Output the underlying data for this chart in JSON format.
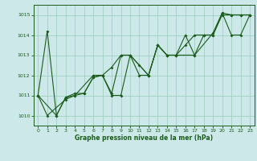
{
  "xlabel": "Graphe pression niveau de la mer (hPa)",
  "background_color": "#cce8e8",
  "grid_color": "#99ccbb",
  "line_color": "#1a5c1a",
  "xlim": [
    -0.5,
    23.5
  ],
  "ylim": [
    1009.5,
    1015.5
  ],
  "yticks": [
    1010,
    1011,
    1012,
    1013,
    1014,
    1015
  ],
  "xticks": [
    0,
    1,
    2,
    3,
    4,
    5,
    6,
    7,
    8,
    9,
    10,
    11,
    12,
    13,
    14,
    15,
    16,
    17,
    18,
    19,
    20,
    21,
    22,
    23
  ],
  "series1": [
    [
      0,
      1011.0
    ],
    [
      1,
      1014.2
    ],
    [
      2,
      1010.0
    ],
    [
      3,
      1010.9
    ],
    [
      4,
      1011.1
    ],
    [
      5,
      1011.1
    ],
    [
      6,
      1011.9
    ],
    [
      7,
      1012.0
    ],
    [
      8,
      1011.1
    ],
    [
      9,
      1013.0
    ],
    [
      10,
      1013.0
    ],
    [
      11,
      1012.5
    ],
    [
      12,
      1012.0
    ],
    [
      13,
      1013.5
    ],
    [
      14,
      1013.0
    ],
    [
      15,
      1013.0
    ],
    [
      16,
      1014.0
    ],
    [
      17,
      1013.0
    ],
    [
      18,
      1014.0
    ],
    [
      19,
      1014.0
    ],
    [
      20,
      1015.1
    ],
    [
      21,
      1015.0
    ],
    [
      22,
      1015.0
    ],
    [
      23,
      1015.0
    ]
  ],
  "series2": [
    [
      0,
      1011.0
    ],
    [
      2,
      1010.0
    ],
    [
      3,
      1010.9
    ],
    [
      4,
      1011.0
    ],
    [
      5,
      1011.1
    ],
    [
      6,
      1011.9
    ],
    [
      7,
      1012.0
    ],
    [
      8,
      1012.4
    ],
    [
      9,
      1013.0
    ],
    [
      10,
      1013.0
    ],
    [
      11,
      1012.0
    ],
    [
      12,
      1012.0
    ],
    [
      13,
      1013.5
    ],
    [
      14,
      1013.0
    ],
    [
      15,
      1013.0
    ],
    [
      16,
      1013.5
    ],
    [
      17,
      1014.0
    ],
    [
      18,
      1014.0
    ],
    [
      19,
      1014.0
    ],
    [
      20,
      1015.0
    ],
    [
      21,
      1015.0
    ],
    [
      22,
      1015.0
    ],
    [
      23,
      1015.0
    ]
  ],
  "series3": [
    [
      0,
      1011.0
    ],
    [
      1,
      1010.0
    ],
    [
      3,
      1010.8
    ],
    [
      4,
      1011.0
    ],
    [
      6,
      1012.0
    ],
    [
      7,
      1012.0
    ],
    [
      8,
      1011.0
    ],
    [
      9,
      1011.0
    ],
    [
      10,
      1013.0
    ],
    [
      12,
      1012.0
    ],
    [
      13,
      1013.5
    ],
    [
      14,
      1013.0
    ],
    [
      15,
      1013.0
    ],
    [
      17,
      1013.0
    ],
    [
      19,
      1014.1
    ],
    [
      20,
      1015.1
    ],
    [
      21,
      1014.0
    ],
    [
      22,
      1014.0
    ],
    [
      23,
      1015.0
    ]
  ]
}
